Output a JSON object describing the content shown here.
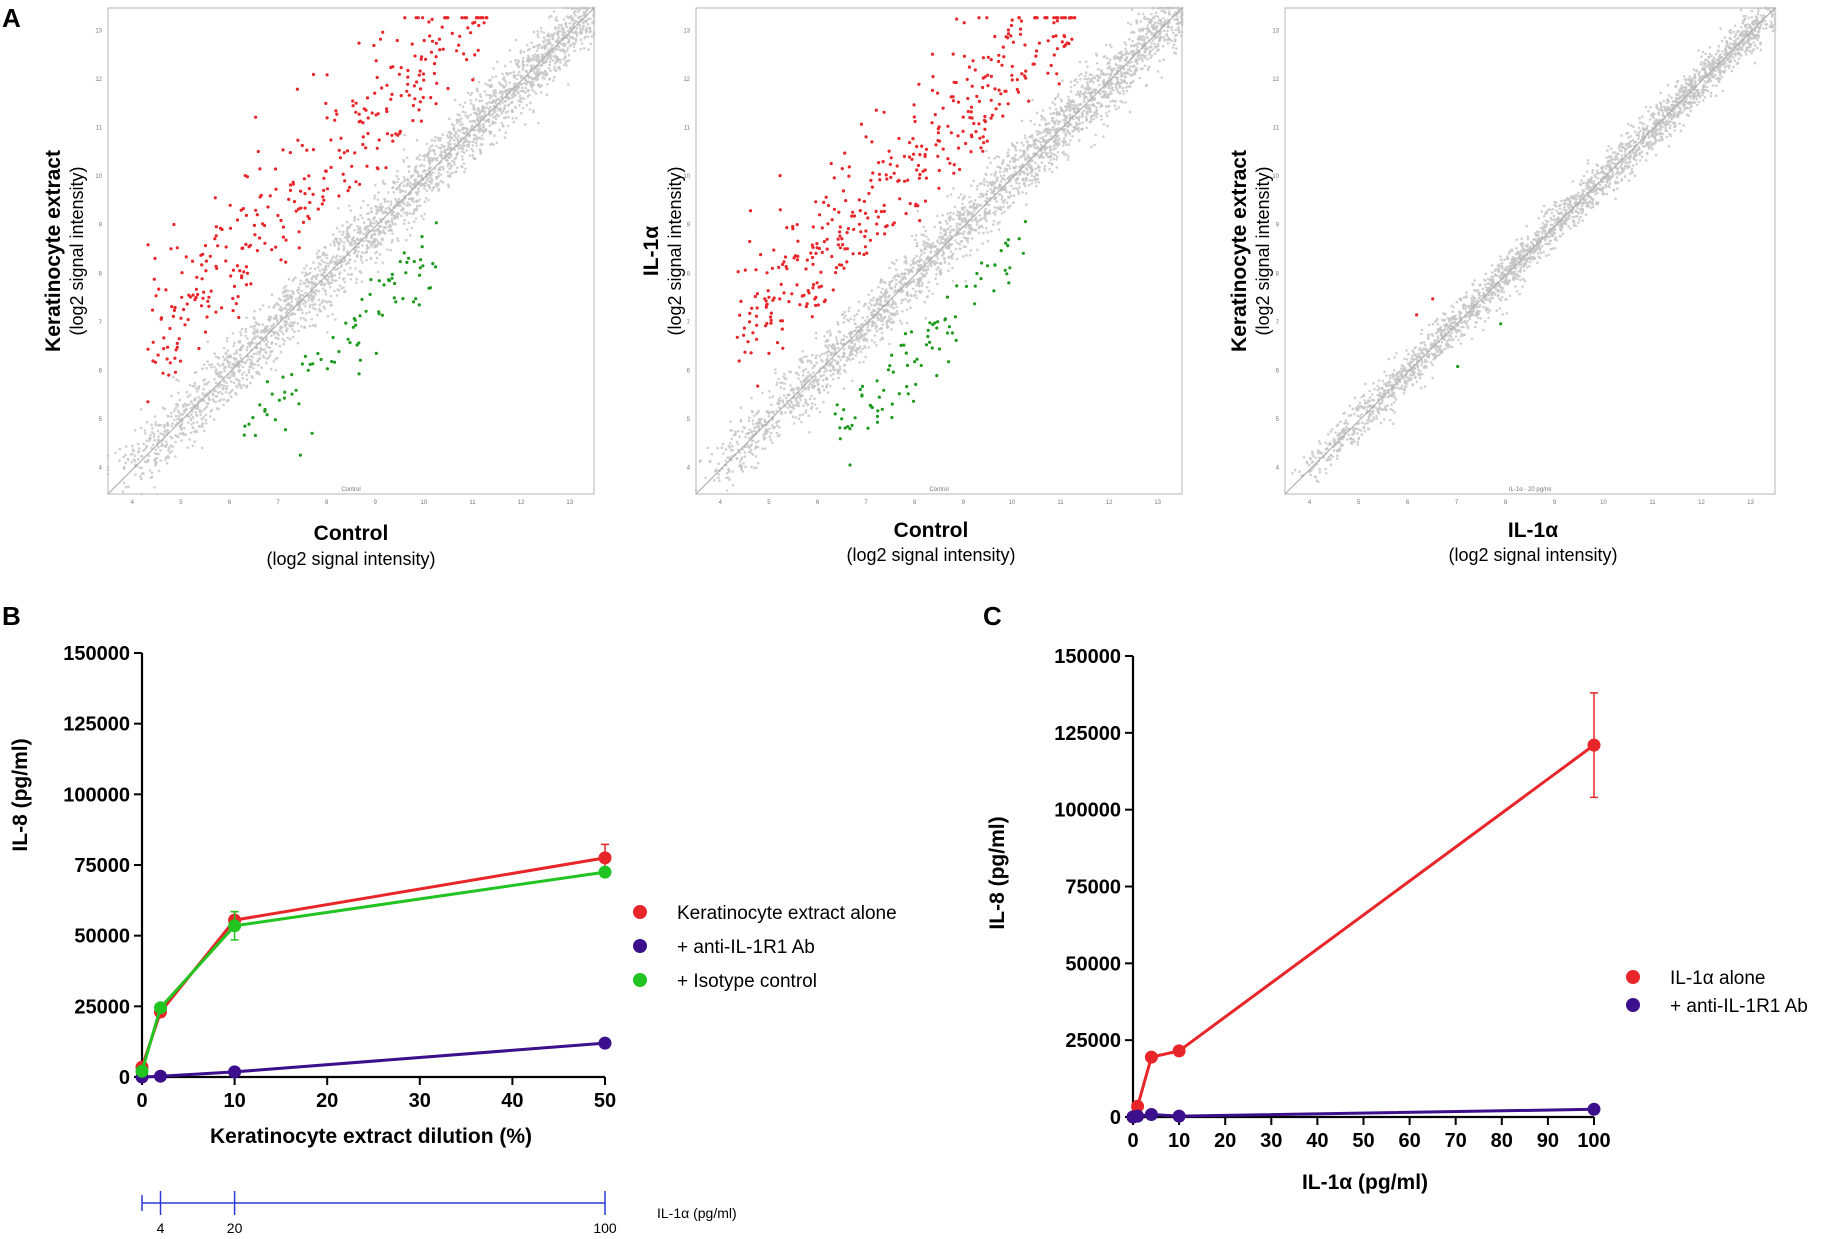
{
  "panel_letters": {
    "a": "A",
    "b": "B",
    "c": "C"
  },
  "chart_data": [
    {
      "type": "scatter",
      "id": "A1",
      "ylabel": "Keratinocyte extract",
      "ylabel_sub": "(log2 signal intensity)",
      "xlabel": "Control",
      "xlabel_sub": "(log2 signal intensity)",
      "inner_x_tick_labels": [
        "4",
        "5",
        "6",
        "7",
        "8",
        "9",
        "10",
        "11",
        "12",
        "13"
      ],
      "inner_y_tick_labels": [
        "4",
        "5",
        "6",
        "7",
        "8",
        "9",
        "10",
        "11",
        "12",
        "13"
      ],
      "inner_x_caption": "Control",
      "axis_range": [
        3.5,
        13.5
      ],
      "spread": 0.45,
      "up_regulated_count": 330,
      "down_regulated_count": 85,
      "colors": {
        "background": "#c4c4c4",
        "up": "#e8262a",
        "down": "#1f9a1f"
      }
    },
    {
      "type": "scatter",
      "id": "A2",
      "ylabel": "IL-1α",
      "ylabel_sub": "(log2 signal intensity)",
      "xlabel": "Control",
      "xlabel_sub": "(log2 signal intensity)",
      "inner_x_tick_labels": [
        "4",
        "5",
        "6",
        "7",
        "8",
        "9",
        "10",
        "11",
        "12",
        "13"
      ],
      "inner_y_tick_labels": [
        "4",
        "5",
        "6",
        "7",
        "8",
        "9",
        "10",
        "11",
        "12",
        "13"
      ],
      "inner_x_caption": "Control",
      "axis_range": [
        3.5,
        13.5
      ],
      "spread": 0.45,
      "up_regulated_count": 400,
      "down_regulated_count": 90,
      "colors": {
        "background": "#c4c4c4",
        "up": "#e8262a",
        "down": "#1f9a1f"
      }
    },
    {
      "type": "scatter",
      "id": "A3",
      "ylabel": "Keratinocyte extract",
      "ylabel_sub": "(log2 signal intensity)",
      "xlabel": "IL-1α",
      "xlabel_sub": "(log2 signal intensity)",
      "inner_x_tick_labels": [
        "4",
        "5",
        "6",
        "7",
        "8",
        "9",
        "10",
        "11",
        "12",
        "13"
      ],
      "inner_y_tick_labels": [
        "4",
        "5",
        "6",
        "7",
        "8",
        "9",
        "10",
        "11",
        "12",
        "13"
      ],
      "inner_x_caption": "IL-1α - 20 pg/ml",
      "axis_range": [
        3.5,
        13.5
      ],
      "spread": 0.28,
      "up_regulated_count": 2,
      "down_regulated_count": 2,
      "colors": {
        "background": "#c4c4c4",
        "up": "#e8262a",
        "down": "#1f9a1f"
      }
    },
    {
      "type": "line",
      "id": "B",
      "title": "",
      "xlabel": "Keratinocyte extract dilution (%)",
      "ylabel": "IL-8  (pg/ml)",
      "xlim": [
        0,
        50
      ],
      "ylim": [
        0,
        150000
      ],
      "x_ticks": [
        0,
        10,
        20,
        30,
        40,
        50
      ],
      "y_ticks": [
        0,
        25000,
        50000,
        75000,
        100000,
        125000,
        150000
      ],
      "series": [
        {
          "name": "Keratinocyte extract alone",
          "color": "#e8262a",
          "x": [
            0,
            2,
            10,
            50
          ],
          "y": [
            3500,
            23000,
            55500,
            77500
          ],
          "err": [
            0,
            1500,
            3000,
            4800
          ]
        },
        {
          "name": " + anti-IL-1R1 Ab",
          "color": "#3c0f8c",
          "x": [
            0,
            2,
            10,
            50
          ],
          "y": [
            0,
            300,
            1800,
            12000
          ],
          "err": [
            0,
            0,
            0,
            0
          ]
        },
        {
          "name": " + Isotype control",
          "color": "#22c422",
          "x": [
            0,
            2,
            10,
            50
          ],
          "y": [
            2000,
            24500,
            53500,
            72500
          ],
          "err": [
            0,
            1200,
            5000,
            1500
          ]
        }
      ],
      "secondary_axis": {
        "label": "IL-1α (pg/ml)",
        "tick_labels": [
          "4",
          "20",
          "100"
        ],
        "tick_positions_pct": [
          2,
          10,
          50
        ],
        "color": "#2d3ad6"
      }
    },
    {
      "type": "line",
      "id": "C",
      "title": "",
      "xlabel": "IL-1α (pg/ml)",
      "ylabel": "IL-8  (pg/ml)",
      "xlim": [
        0,
        100
      ],
      "ylim": [
        0,
        150000
      ],
      "x_ticks": [
        0,
        10,
        20,
        30,
        40,
        50,
        60,
        70,
        80,
        90,
        100
      ],
      "y_ticks": [
        0,
        25000,
        50000,
        75000,
        100000,
        125000,
        150000
      ],
      "series": [
        {
          "name": "IL-1α  alone",
          "color": "#e8262a",
          "x": [
            0,
            1,
            4,
            10,
            100
          ],
          "y": [
            0,
            3500,
            19500,
            21500,
            121000
          ],
          "err": [
            0,
            0,
            0,
            0,
            17000
          ]
        },
        {
          "name": " + anti-IL-1R1 Ab",
          "color": "#3c0f8c",
          "x": [
            0,
            1,
            4,
            10,
            100
          ],
          "y": [
            0,
            300,
            800,
            300,
            2500
          ],
          "err": [
            0,
            0,
            0,
            0,
            0
          ]
        }
      ]
    }
  ]
}
